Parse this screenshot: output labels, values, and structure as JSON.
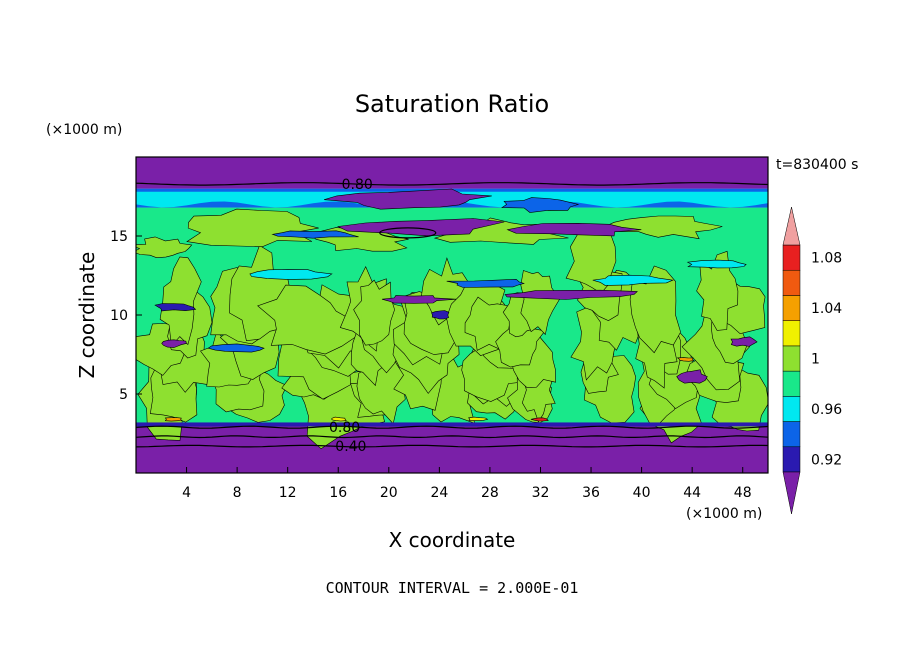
{
  "chart_data": {
    "type": "heatmap",
    "title": "Saturation Ratio",
    "xlabel": "X coordinate",
    "ylabel": "Z coordinate",
    "x_unit": "(×1000 m)",
    "y_unit": "(×1000 m)",
    "time_label": "t=830400 s",
    "footer": "CONTOUR INTERVAL = 2.000E-01",
    "xlim": [
      0,
      50
    ],
    "ylim": [
      0,
      20
    ],
    "x_ticks": [
      4,
      8,
      12,
      16,
      20,
      24,
      28,
      32,
      36,
      40,
      44,
      48
    ],
    "y_ticks": [
      5,
      10,
      15
    ],
    "contour_labels": [
      {
        "text": "0.80",
        "x": 17.5,
        "z": 18.3
      },
      {
        "text": "0.80",
        "x": 16.5,
        "z": 2.9
      },
      {
        "text": "0.40",
        "x": 17.0,
        "z": 1.7
      }
    ],
    "colorbar": {
      "levels": [
        0.92,
        0.94,
        0.96,
        0.98,
        1.0,
        1.02,
        1.04,
        1.06,
        1.08
      ],
      "tick_labels": [
        "0.92",
        "0.96",
        "1",
        "1.04",
        "1.08"
      ],
      "colors": [
        "#7a20a8",
        "#2a1ab0",
        "#0c64e8",
        "#00e8f0",
        "#19e88a",
        "#8ee030",
        "#f0f000",
        "#f5a000",
        "#f05a10",
        "#e82020",
        "#f0a0a0"
      ],
      "under_color": "#7a20a8",
      "over_color": "#f0a0a0"
    },
    "field_bands": [
      {
        "z_from": 0,
        "z_to": 3.1,
        "class": "<0.92",
        "color": "#7a20a8"
      },
      {
        "z_from": 3.1,
        "z_to": 16.8,
        "class": "0.98-1.02",
        "color": "#19e88a"
      },
      {
        "z_from": 16.8,
        "z_to": 18.0,
        "class": "0.94-0.98",
        "color": "#0c64e8"
      },
      {
        "z_from": 18.0,
        "z_to": 20,
        "class": "<0.92",
        "color": "#7a20a8"
      }
    ]
  }
}
